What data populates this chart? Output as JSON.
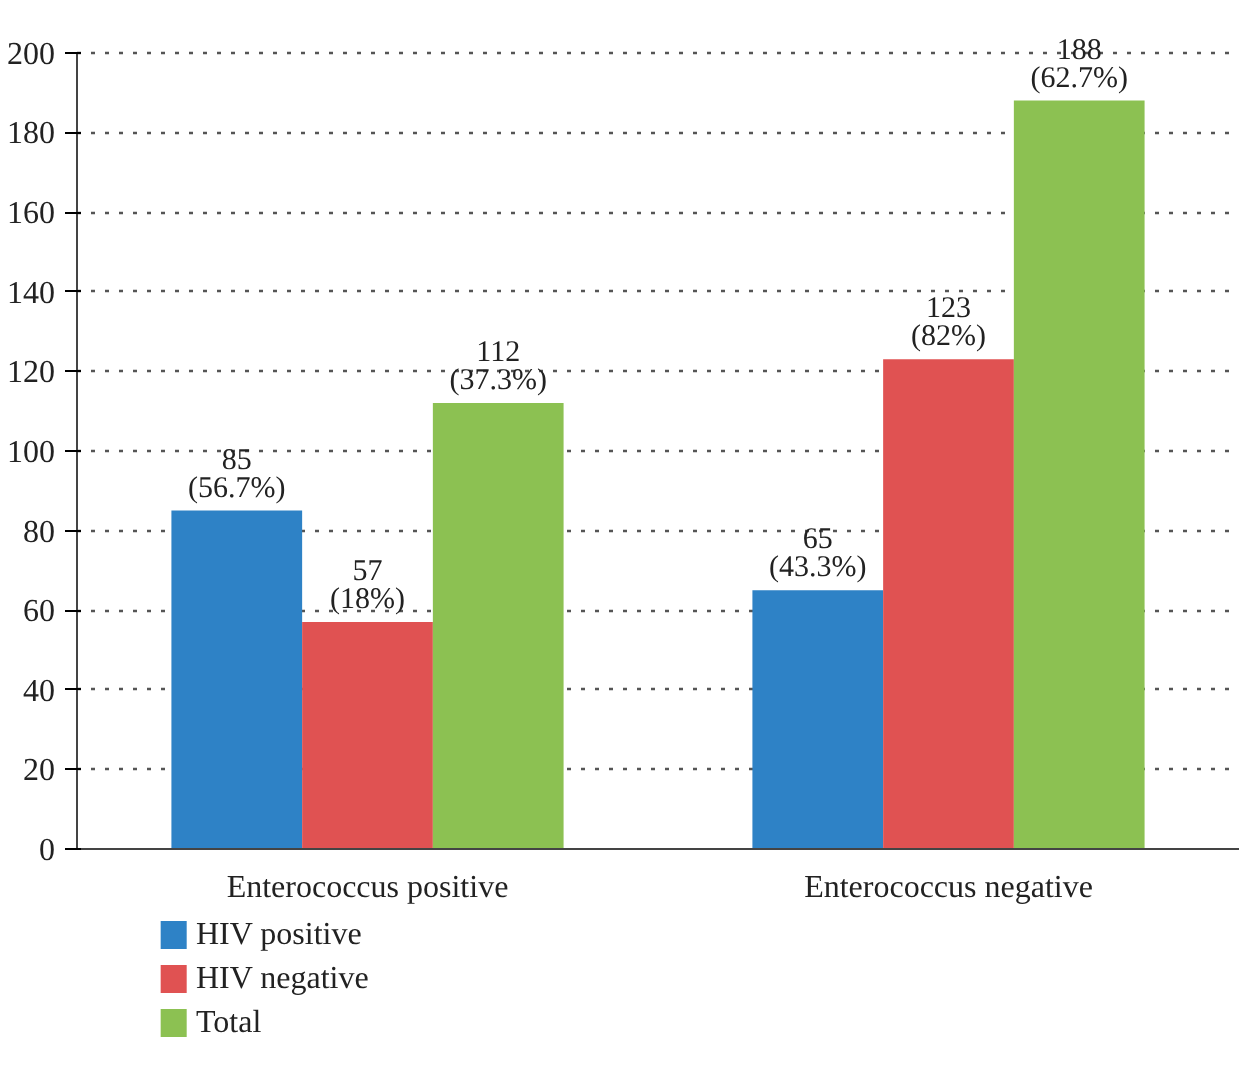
{
  "chart_data": {
    "type": "bar",
    "categories": [
      "Enterococcus positive",
      "Enterococcus negative"
    ],
    "series": [
      {
        "name": "HIV positive",
        "color": "#2e82c6",
        "values": [
          85,
          65
        ],
        "value_labels": [
          "85\n(56.7%)",
          "65\n(43.3%)"
        ]
      },
      {
        "name": "HIV negative",
        "color": "#e05252",
        "values": [
          57,
          123
        ],
        "value_labels": [
          "57\n(18%)",
          "123\n(82%)"
        ]
      },
      {
        "name": "Total",
        "color": "#8cc152",
        "values": [
          112,
          188
        ],
        "value_labels": [
          "112\n(37.3%)",
          "188\n(62.7%)"
        ]
      }
    ],
    "ylim": [
      0,
      200
    ],
    "yticks": [
      0,
      20,
      40,
      60,
      80,
      100,
      120,
      140,
      160,
      180,
      200
    ],
    "grid": "y",
    "legend": "bottom"
  }
}
